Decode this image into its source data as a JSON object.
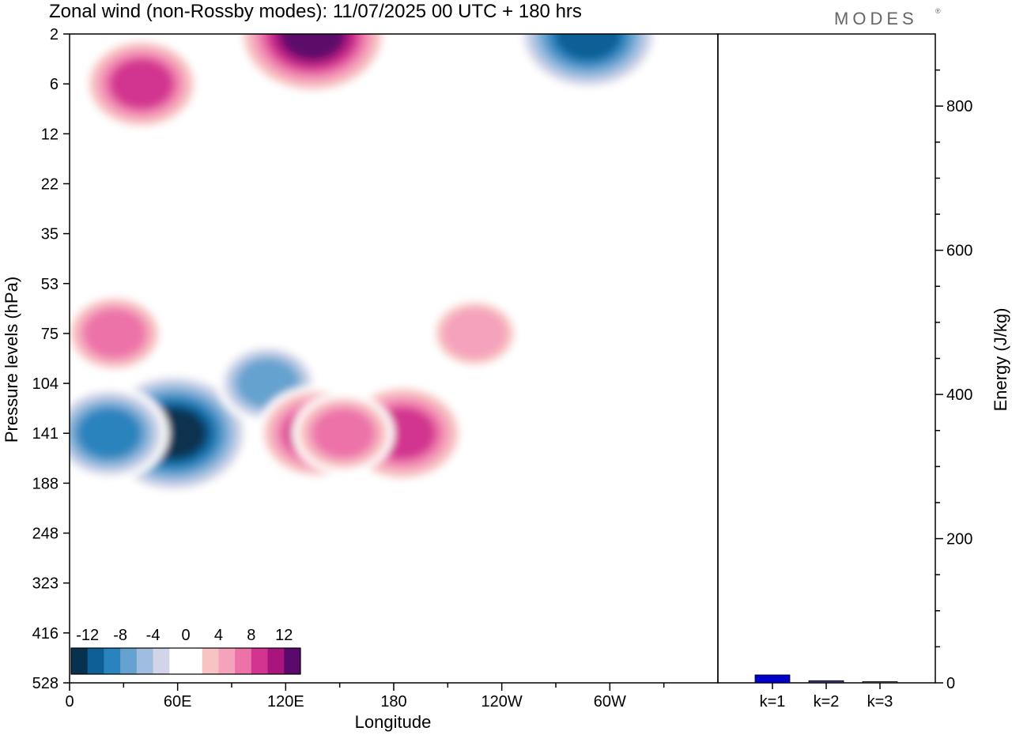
{
  "chart_data": [
    {
      "type": "heatmap",
      "title": "Zonal wind (non-Rossby modes):  11/07/2025  00 UTC  + 180 hrs",
      "xlabel": "Longitude",
      "ylabel": "Pressure levels (hPa)",
      "x_ticks": [
        "0",
        "60E",
        "120E",
        "180",
        "120W",
        "60W"
      ],
      "y_ticks": [
        "2",
        "6",
        "12",
        "22",
        "35",
        "53",
        "75",
        "104",
        "141",
        "188",
        "248",
        "323",
        "416",
        "528"
      ],
      "colorbar": {
        "labels": [
          "-12",
          "-8",
          "-4",
          "0",
          "4",
          "8",
          "12"
        ],
        "colors": [
          "#08304f",
          "#0d5f95",
          "#2a83bd",
          "#66a2cf",
          "#9fbedf",
          "#d2d5e8",
          "#ffffff",
          "#ffffff",
          "#f8c4c3",
          "#f5a2bc",
          "#ec72a8",
          "#d2348f",
          "#a8167d",
          "#5b0a6b"
        ]
      },
      "features": [
        {
          "name": "strong-easterly-core-60E",
          "value": -13,
          "x_deg": 58,
          "level": 141
        },
        {
          "name": "easterly-core-25E",
          "value": -9,
          "x_deg": 22,
          "level": 141
        },
        {
          "name": "easterly-band-100E",
          "value": -7,
          "x_deg": 110,
          "level": 104
        },
        {
          "name": "westerly-core-180",
          "value": 10,
          "x_deg": 185,
          "level": 141
        },
        {
          "name": "westerly-core-135E",
          "value": 9,
          "x_deg": 137,
          "level": 141
        },
        {
          "name": "westerly-core-155E",
          "value": 7,
          "x_deg": 152,
          "level": 141
        },
        {
          "name": "westerly-band-low-stratosphere",
          "value": 7,
          "x_deg": 25,
          "level": 75
        },
        {
          "name": "westerly-upper-120E",
          "value": 13,
          "x_deg": 135,
          "level": 2
        },
        {
          "name": "westerly-upper-40E",
          "value": 9,
          "x_deg": 40,
          "level": 6
        },
        {
          "name": "easterly-upper-80W",
          "value": -12,
          "x_deg": 288,
          "level": 2
        },
        {
          "name": "westerly-pink-130W",
          "value": 6,
          "x_deg": 225,
          "level": 75
        }
      ]
    },
    {
      "type": "bar",
      "ylabel": "Energy (J/kg)",
      "categories": [
        "k=1",
        "k=2",
        "k=3"
      ],
      "values": [
        11,
        3,
        1.5
      ],
      "ylim": [
        0,
        900
      ],
      "y_ticks": [
        0,
        200,
        400,
        600,
        800
      ],
      "bar_colors": [
        "#0000c8",
        "#3a3a6a",
        "#555555"
      ]
    }
  ],
  "logo": "MODES",
  "logo_mark": "®"
}
